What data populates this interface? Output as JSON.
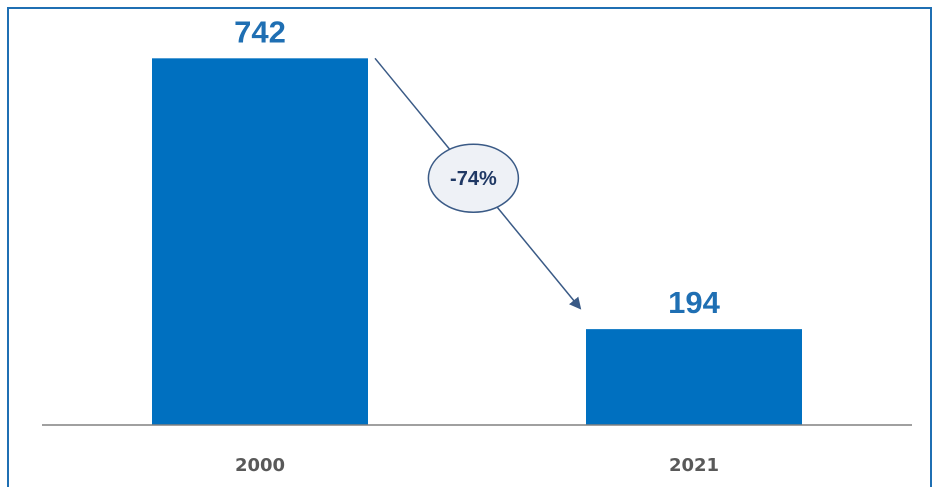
{
  "chart_data": {
    "type": "bar",
    "categories": [
      "2000",
      "2021"
    ],
    "values": [
      742,
      194
    ],
    "value_labels": [
      "742",
      "194"
    ],
    "change_annotation": "-74%",
    "ylim": [
      0,
      860
    ],
    "grid": false,
    "colors": {
      "bar": "#0070c0",
      "value_label": "#1f6fb3",
      "axis": "#808080",
      "frame": "#1f6fb3",
      "arrow": "#3a5a86",
      "bubble_fill": "#eef1f6",
      "bubble_stroke": "#3a5a86",
      "bubble_text": "#1f3864"
    }
  }
}
